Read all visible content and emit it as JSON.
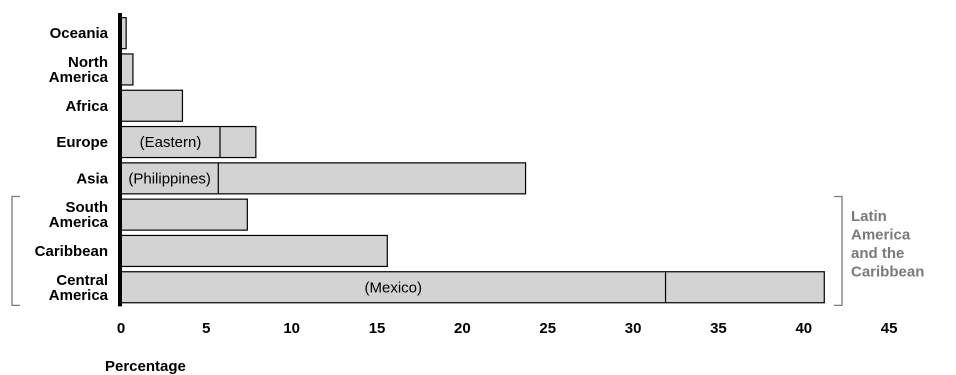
{
  "chart_data": {
    "type": "bar",
    "orientation": "horizontal",
    "stacked": true,
    "categories": [
      "Oceania",
      "North America",
      "Africa",
      "Europe",
      "Asia",
      "South America",
      "Caribbean",
      "Central America"
    ],
    "category_lines": [
      [
        "Oceania"
      ],
      [
        "North",
        "America"
      ],
      [
        "Africa"
      ],
      [
        "Europe"
      ],
      [
        "Asia"
      ],
      [
        "South",
        "America"
      ],
      [
        "Caribbean"
      ],
      [
        "Central",
        "America"
      ]
    ],
    "values": [
      0.3,
      0.7,
      3.6,
      7.9,
      23.7,
      7.4,
      15.6,
      41.2
    ],
    "segments": [
      {
        "category": "Europe",
        "value": 5.8,
        "label": "(Eastern)"
      },
      {
        "category": "Asia",
        "value": 5.7,
        "label": "(Philippines)"
      },
      {
        "category": "Central America",
        "value": 31.9,
        "label": "(Mexico)"
      }
    ],
    "xlim": [
      0,
      45
    ],
    "xticks": [
      0,
      5,
      10,
      15,
      20,
      25,
      30,
      35,
      40,
      45
    ],
    "xlabel": "Percentage",
    "grid": false,
    "bar_color": "#d3d3d3",
    "bracket": {
      "label_lines": [
        "Latin",
        "America",
        "and the",
        "Caribbean"
      ],
      "categories": [
        "South America",
        "Caribbean",
        "Central America"
      ],
      "color": "#7a7a7a"
    }
  }
}
